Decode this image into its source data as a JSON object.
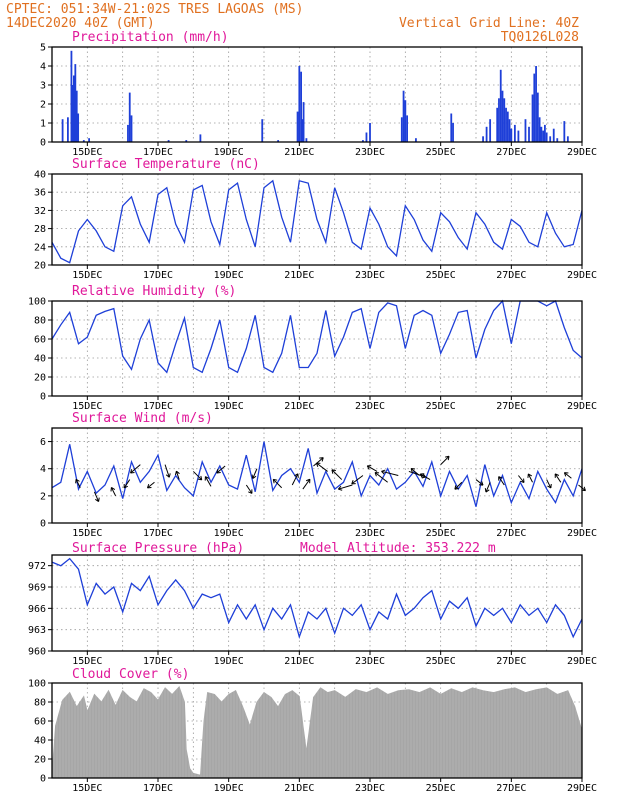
{
  "header": {
    "line1_left": "CPTEC:   051:34W-21:02S   TRES LAGOAS (MS)",
    "line2_left": "14DEC2020 40Z (GMT)",
    "line1_right": "Vertical Grid Line: 40Z",
    "line2_right": "TQ0126L028"
  },
  "colors": {
    "header": "#e07020",
    "title": "#e0189a",
    "series": "#1e3fd8",
    "cloud": "#a6a6a6"
  },
  "x_axis": {
    "start_day": 14.0,
    "end_day": 29.0,
    "tick_days": [
      15,
      17,
      19,
      21,
      23,
      25,
      27,
      29
    ],
    "tick_labels": [
      "15DEC",
      "17DEC",
      "19DEC",
      "21DEC",
      "23DEC",
      "25DEC",
      "27DEC",
      "29DEC"
    ],
    "grid_days": [
      15,
      16,
      17,
      18,
      19,
      20,
      21,
      22,
      23,
      24,
      25,
      26,
      27,
      28
    ]
  },
  "chart_data": [
    {
      "type": "bar",
      "title": "Precipitation (mm/h)",
      "ylim": [
        0,
        5
      ],
      "yticks": [
        "0",
        "1",
        "2",
        "3",
        "4",
        "5"
      ],
      "x_days": [
        14.3,
        14.45,
        14.55,
        14.58,
        14.62,
        14.66,
        14.7,
        14.74,
        14.9,
        15.05,
        16.15,
        16.2,
        16.25,
        17.3,
        17.8,
        18.2,
        19.95,
        20.4,
        20.95,
        21.0,
        21.05,
        21.08,
        21.12,
        21.2,
        22.8,
        22.9,
        23.0,
        23.9,
        23.95,
        24.0,
        24.05,
        24.3,
        25.3,
        25.35,
        26.2,
        26.3,
        26.4,
        26.6,
        26.65,
        26.7,
        26.75,
        26.8,
        26.85,
        26.9,
        26.95,
        27.0,
        27.1,
        27.2,
        27.4,
        27.5,
        27.6,
        27.65,
        27.7,
        27.75,
        27.8,
        27.85,
        27.9,
        27.95,
        28.0,
        28.1,
        28.2,
        28.3,
        28.5,
        28.6
      ],
      "values": [
        1.2,
        1.3,
        4.8,
        3.0,
        3.5,
        4.1,
        2.7,
        1.5,
        0.1,
        0.2,
        0.9,
        2.6,
        1.4,
        0.1,
        0.1,
        0.4,
        1.2,
        0.1,
        1.6,
        4.0,
        3.7,
        1.2,
        2.1,
        0.2,
        0.1,
        0.5,
        1.0,
        1.3,
        2.7,
        2.2,
        1.4,
        0.2,
        1.5,
        1.0,
        0.3,
        0.8,
        1.2,
        1.8,
        2.3,
        3.8,
        2.7,
        2.3,
        1.8,
        1.6,
        1.2,
        0.7,
        0.9,
        0.6,
        1.2,
        0.8,
        2.5,
        3.6,
        4.0,
        2.6,
        1.3,
        0.8,
        0.6,
        0.9,
        0.5,
        0.3,
        0.7,
        0.2,
        1.1,
        0.3
      ]
    },
    {
      "type": "line",
      "title": "Surface Temperature (nC)",
      "ylim": [
        20,
        40
      ],
      "yticks": [
        "20",
        "24",
        "28",
        "32",
        "36",
        "40"
      ],
      "x_days": [
        14.0,
        14.25,
        14.5,
        14.75,
        15.0,
        15.25,
        15.5,
        15.75,
        16.0,
        16.25,
        16.5,
        16.75,
        17.0,
        17.25,
        17.5,
        17.75,
        18.0,
        18.25,
        18.5,
        18.75,
        19.0,
        19.25,
        19.5,
        19.75,
        20.0,
        20.25,
        20.5,
        20.75,
        21.0,
        21.25,
        21.5,
        21.75,
        22.0,
        22.25,
        22.5,
        22.75,
        23.0,
        23.25,
        23.5,
        23.75,
        24.0,
        24.25,
        24.5,
        24.75,
        25.0,
        25.25,
        25.5,
        25.75,
        26.0,
        26.25,
        26.5,
        26.75,
        27.0,
        27.25,
        27.5,
        27.75,
        28.0,
        28.25,
        28.5,
        28.75,
        29.0
      ],
      "values": [
        25.0,
        21.5,
        20.5,
        27.5,
        30.0,
        27.5,
        24.0,
        23.0,
        33.0,
        35.0,
        29.0,
        25.0,
        35.5,
        37.0,
        29.0,
        25.0,
        36.5,
        37.5,
        29.5,
        24.5,
        36.5,
        38.0,
        30.0,
        24.0,
        37.0,
        38.5,
        30.5,
        25.0,
        38.5,
        38.0,
        30.0,
        25.0,
        37.0,
        31.5,
        25.0,
        23.5,
        32.5,
        29.0,
        24.0,
        22.0,
        33.0,
        30.0,
        25.5,
        23.0,
        31.5,
        29.5,
        26.0,
        23.5,
        31.5,
        29.0,
        25.0,
        23.5,
        30.0,
        28.5,
        25.0,
        24.0,
        31.5,
        27.0,
        24.0,
        24.5,
        32.0
      ]
    },
    {
      "type": "line",
      "title": "Relative Humidity (%)",
      "ylim": [
        0,
        100
      ],
      "yticks": [
        "0",
        "20",
        "40",
        "60",
        "80",
        "100"
      ],
      "x_days": [
        14.0,
        14.25,
        14.5,
        14.75,
        15.0,
        15.25,
        15.5,
        15.75,
        16.0,
        16.25,
        16.5,
        16.75,
        17.0,
        17.25,
        17.5,
        17.75,
        18.0,
        18.25,
        18.5,
        18.75,
        19.0,
        19.25,
        19.5,
        19.75,
        20.0,
        20.25,
        20.5,
        20.75,
        21.0,
        21.25,
        21.5,
        21.75,
        22.0,
        22.25,
        22.5,
        22.75,
        23.0,
        23.25,
        23.5,
        23.75,
        24.0,
        24.25,
        24.5,
        24.75,
        25.0,
        25.25,
        25.5,
        25.75,
        26.0,
        26.25,
        26.5,
        26.75,
        27.0,
        27.25,
        27.5,
        27.75,
        28.0,
        28.25,
        28.5,
        28.75,
        29.0
      ],
      "values": [
        60.0,
        75.0,
        88.0,
        55.0,
        62.0,
        85.0,
        89.0,
        92.0,
        42.0,
        28.0,
        60.0,
        80.0,
        35.0,
        25.0,
        55.0,
        82.0,
        30.0,
        25.0,
        50.0,
        80.0,
        30.0,
        25.0,
        50.0,
        85.0,
        30.0,
        25.0,
        45.0,
        85.0,
        30.0,
        30.0,
        45.0,
        90.0,
        42.0,
        62.0,
        88.0,
        92.0,
        50.0,
        88.0,
        98.0,
        95.0,
        50.0,
        85.0,
        90.0,
        85.0,
        45.0,
        65.0,
        88.0,
        90.0,
        40.0,
        70.0,
        90.0,
        100.0,
        55.0,
        100.0,
        100.0,
        100.0,
        95.0,
        100.0,
        72.0,
        48.0,
        40.0
      ]
    },
    {
      "type": "line",
      "title": "Surface Wind (m/s)",
      "ylim": [
        0,
        7
      ],
      "yticks": [
        "0",
        "2",
        "4",
        "6"
      ],
      "x_days": [
        14.0,
        14.25,
        14.5,
        14.75,
        15.0,
        15.25,
        15.5,
        15.75,
        16.0,
        16.25,
        16.5,
        16.75,
        17.0,
        17.25,
        17.5,
        17.75,
        18.0,
        18.25,
        18.5,
        18.75,
        19.0,
        19.25,
        19.5,
        19.75,
        20.0,
        20.25,
        20.5,
        20.75,
        21.0,
        21.25,
        21.5,
        21.75,
        22.0,
        22.25,
        22.5,
        22.75,
        23.0,
        23.25,
        23.5,
        23.75,
        24.0,
        24.25,
        24.5,
        24.75,
        25.0,
        25.25,
        25.5,
        25.75,
        26.0,
        26.25,
        26.5,
        26.75,
        27.0,
        27.25,
        27.5,
        27.75,
        28.0,
        28.25,
        28.5,
        28.75,
        29.0
      ],
      "values": [
        2.6,
        3.0,
        5.8,
        2.5,
        3.8,
        2.2,
        2.8,
        4.2,
        1.8,
        4.5,
        3.0,
        3.8,
        5.0,
        2.4,
        3.5,
        2.6,
        2.0,
        4.5,
        3.0,
        4.2,
        2.8,
        2.5,
        5.0,
        2.3,
        6.0,
        2.4,
        3.5,
        4.0,
        3.0,
        5.5,
        2.2,
        3.8,
        2.5,
        3.0,
        4.5,
        2.0,
        3.5,
        2.8,
        4.0,
        2.5,
        3.0,
        3.8,
        2.7,
        4.5,
        2.0,
        3.8,
        2.5,
        3.5,
        1.2,
        4.3,
        2.0,
        3.5,
        1.5,
        3.0,
        1.8,
        3.8,
        2.5,
        1.5,
        3.2,
        2.0,
        4.0
      ],
      "vector_days": [
        14.8,
        15.2,
        15.8,
        16.2,
        16.5,
        16.9,
        17.2,
        17.6,
        18.0,
        18.5,
        18.9,
        19.5,
        19.8,
        20.5,
        20.8,
        21.1,
        21.4,
        21.8,
        22.2,
        22.5,
        22.8,
        23.2,
        23.5,
        23.8,
        24.1,
        24.4,
        24.7,
        25.0,
        25.6,
        26.0,
        26.4,
        26.8,
        27.2,
        27.6,
        28.0,
        28.4,
        28.7,
        28.9
      ],
      "vector_values": [
        2.6,
        2.3,
        2.0,
        3.2,
        4.3,
        3.0,
        4.3,
        3.2,
        3.8,
        2.7,
        4.2,
        2.8,
        4.0,
        2.6,
        2.8,
        2.5,
        4.2,
        3.8,
        3.2,
        2.8,
        3.5,
        3.8,
        3.0,
        3.5,
        3.8,
        3.5,
        3.2,
        4.3,
        3.0,
        3.2,
        3.0,
        2.8,
        3.5,
        3.0,
        3.2,
        3.0,
        3.3,
        2.8
      ],
      "vector_u": [
        -3,
        3,
        -3,
        -4,
        -7,
        -5,
        3,
        -2,
        6,
        -4,
        -6,
        4,
        -3,
        -6,
        4,
        5,
        7,
        -8,
        -7,
        -10,
        -8,
        -7,
        -9,
        -12,
        12,
        -6,
        -7,
        6,
        -5,
        5,
        -3,
        -4,
        4,
        -3,
        3,
        -4,
        -5,
        5
      ],
      "vector_v": [
        6,
        -7,
        6,
        -6,
        -6,
        -4,
        -9,
        6,
        -6,
        7,
        -5,
        -6,
        -7,
        6,
        8,
        7,
        6,
        6,
        7,
        -3,
        -6,
        4,
        7,
        3,
        -4,
        5,
        4,
        6,
        -5,
        -4,
        -7,
        6,
        -5,
        6,
        -6,
        6,
        4,
        -4
      ]
    },
    {
      "type": "line",
      "title": "Surface Pressure (hPa)",
      "annotation": "Model Altitude: 353.222 m",
      "ylim": [
        960,
        973.5
      ],
      "yticks": [
        "960",
        "963",
        "966",
        "969",
        "972"
      ],
      "x_days": [
        14.0,
        14.25,
        14.5,
        14.75,
        15.0,
        15.25,
        15.5,
        15.75,
        16.0,
        16.25,
        16.5,
        16.75,
        17.0,
        17.25,
        17.5,
        17.75,
        18.0,
        18.25,
        18.5,
        18.75,
        19.0,
        19.25,
        19.5,
        19.75,
        20.0,
        20.25,
        20.5,
        20.75,
        21.0,
        21.25,
        21.5,
        21.75,
        22.0,
        22.25,
        22.5,
        22.75,
        23.0,
        23.25,
        23.5,
        23.75,
        24.0,
        24.25,
        24.5,
        24.75,
        25.0,
        25.25,
        25.5,
        25.75,
        26.0,
        26.25,
        26.5,
        26.75,
        27.0,
        27.25,
        27.5,
        27.75,
        28.0,
        28.25,
        28.5,
        28.75,
        29.0
      ],
      "values": [
        972.5,
        972.0,
        973.0,
        971.5,
        966.5,
        969.5,
        968.0,
        969.0,
        965.5,
        969.5,
        968.5,
        970.5,
        966.5,
        968.5,
        970.0,
        968.5,
        966.0,
        968.0,
        967.5,
        968.0,
        964.0,
        966.5,
        964.5,
        966.5,
        963.0,
        966.0,
        964.5,
        966.5,
        962.0,
        965.5,
        964.5,
        966.0,
        962.5,
        966.0,
        965.0,
        966.5,
        963.0,
        965.5,
        964.5,
        968.0,
        965.0,
        966.0,
        967.5,
        968.5,
        964.5,
        967.0,
        966.0,
        967.5,
        963.5,
        966.0,
        965.0,
        966.0,
        964.0,
        966.5,
        965.0,
        966.0,
        964.0,
        966.5,
        965.0,
        962.0,
        964.5
      ]
    },
    {
      "type": "area",
      "title": "Cloud Cover (%)",
      "ylim": [
        0,
        100
      ],
      "yticks": [
        "0",
        "20",
        "40",
        "60",
        "80",
        "100"
      ],
      "x_days": [
        14.0,
        14.1,
        14.3,
        14.5,
        14.7,
        14.9,
        15.0,
        15.2,
        15.4,
        15.6,
        15.8,
        16.0,
        16.2,
        16.4,
        16.6,
        16.8,
        17.0,
        17.2,
        17.4,
        17.6,
        17.75,
        17.8,
        17.9,
        18.0,
        18.2,
        18.3,
        18.4,
        18.6,
        18.8,
        19.0,
        19.2,
        19.4,
        19.6,
        19.8,
        20.0,
        20.2,
        20.4,
        20.6,
        20.8,
        21.0,
        21.2,
        21.4,
        21.6,
        21.8,
        22.0,
        22.3,
        22.6,
        22.9,
        23.2,
        23.5,
        23.8,
        24.1,
        24.4,
        24.7,
        25.0,
        25.3,
        25.6,
        25.9,
        26.2,
        26.5,
        26.8,
        27.1,
        27.4,
        27.7,
        28.0,
        28.3,
        28.6,
        28.8,
        29.0
      ],
      "values": [
        5,
        55,
        82,
        90,
        75,
        86,
        70,
        88,
        80,
        92,
        76,
        92,
        85,
        80,
        94,
        90,
        82,
        95,
        88,
        96,
        80,
        30,
        10,
        5,
        3,
        60,
        90,
        88,
        80,
        88,
        92,
        75,
        55,
        80,
        90,
        85,
        75,
        88,
        92,
        86,
        28,
        85,
        95,
        90,
        92,
        85,
        93,
        90,
        95,
        88,
        92,
        93,
        90,
        95,
        88,
        94,
        90,
        95,
        92,
        90,
        93,
        95,
        90,
        93,
        95,
        88,
        92,
        75,
        50
      ]
    }
  ]
}
